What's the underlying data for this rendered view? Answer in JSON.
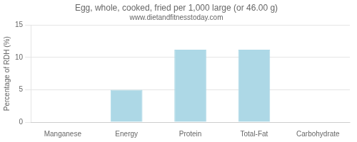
{
  "chart_data": {
    "type": "bar",
    "title": "Egg, whole, cooked, fried per 1,000 large (or 46.00 g)",
    "subtitle": "www.dietandfitnesstoday.com",
    "ylabel": "Percentage of RDH (%)",
    "categories": [
      "Manganese",
      "Energy",
      "Protein",
      "Total-Fat",
      "Carbohydrate"
    ],
    "values": [
      0.0,
      5.0,
      11.2,
      11.2,
      0.0
    ],
    "color": "#add8e6",
    "ylim": [
      0,
      15
    ],
    "yticks": [
      0,
      5,
      10,
      15
    ],
    "grid": true
  }
}
